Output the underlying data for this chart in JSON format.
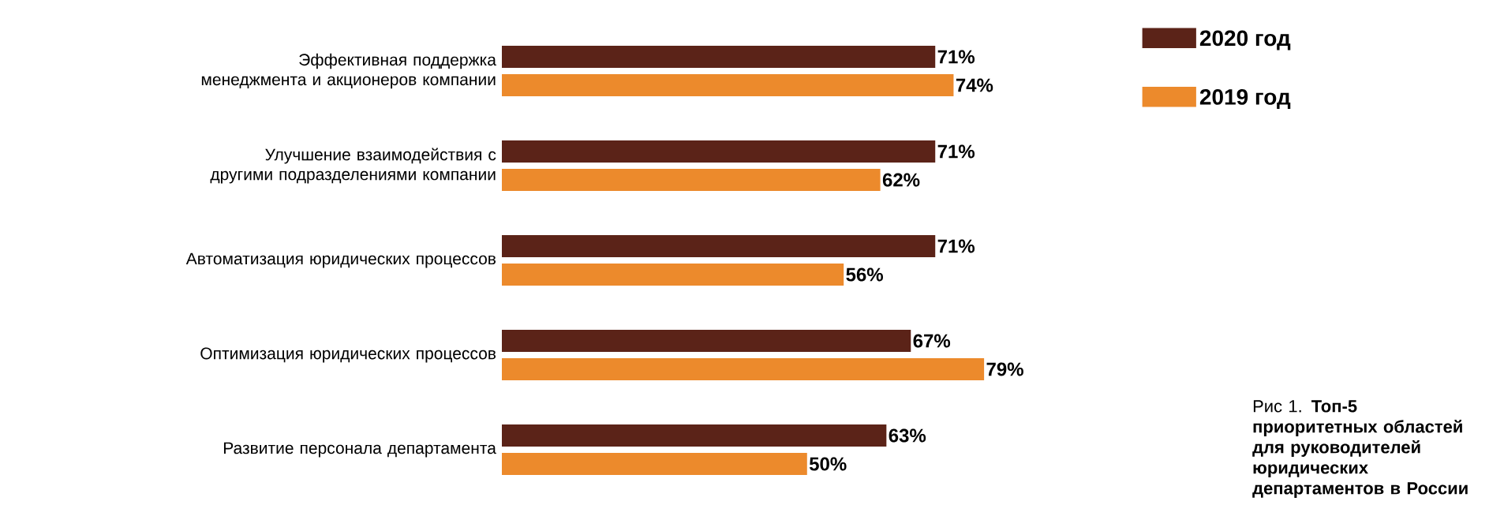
{
  "chart_data": {
    "type": "bar",
    "orientation": "horizontal",
    "title": "Рис 1. **Топ-5 приоритетных областей для руководителей юридических департаментов в России**",
    "categories": [
      "Эффективная поддержка менеджмента и акционеров компании",
      "Улучшение взаимодействия с другими подразделениями компании",
      "Автоматизация юридических процессов",
      "Оптимизация юридических процессов",
      "Развитие персонала департамента"
    ],
    "series": [
      {
        "name": "2020 год",
        "color": "#5b2318",
        "values": [
          71,
          71,
          71,
          67,
          63
        ],
        "value_labels": [
          "71%",
          "71%",
          "71%",
          "67%",
          "63%"
        ]
      },
      {
        "name": "2019 год",
        "color": "#ec8a2c",
        "values": [
          74,
          62,
          56,
          79,
          50
        ],
        "value_labels": [
          "74%",
          "62%",
          "56%",
          "79%",
          "50%"
        ]
      }
    ],
    "legend": "top right"
  }
}
